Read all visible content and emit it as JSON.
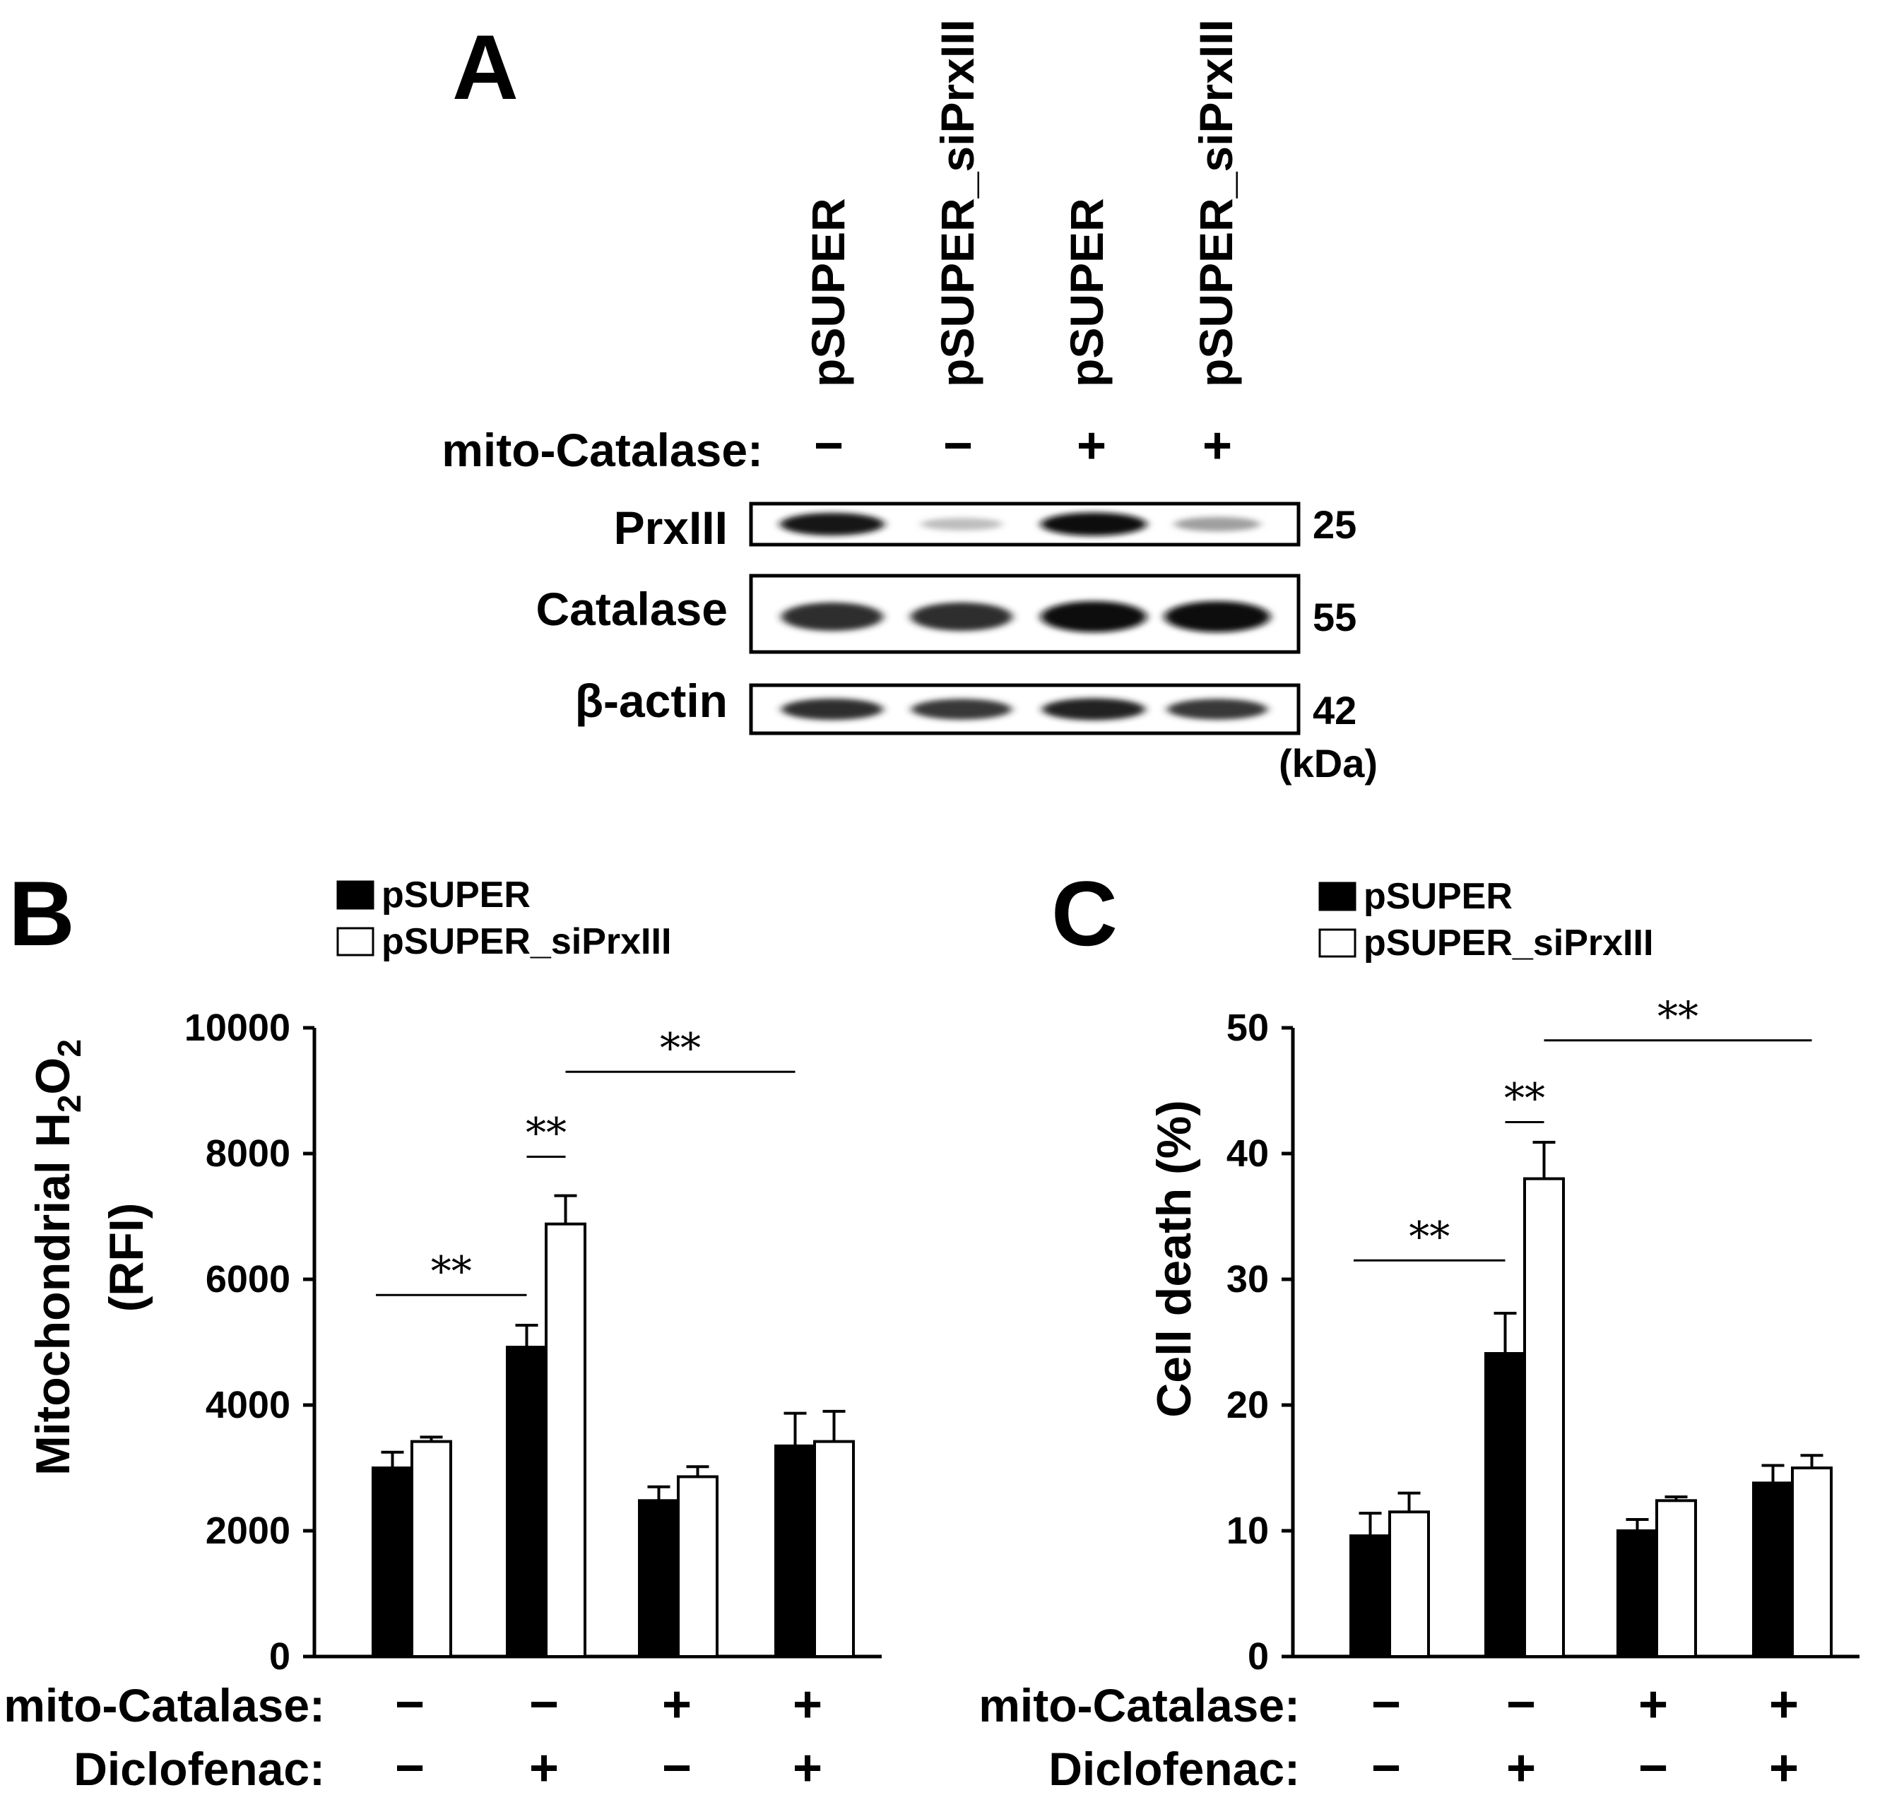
{
  "panel_a": {
    "letter": "A",
    "lanes": [
      "pSUPER",
      "pSUPER_siPrxIII",
      "pSUPER",
      "pSUPER_siPrxIII"
    ],
    "mito_label": "mito-Catalase:",
    "mito_signs": [
      "−",
      "−",
      "+",
      "+"
    ],
    "blots": [
      {
        "name": "PrxIII",
        "kda": "25",
        "intensity": [
          0.95,
          0.15,
          1.0,
          0.3
        ]
      },
      {
        "name": "Catalase",
        "kda": "55",
        "intensity": [
          0.85,
          0.85,
          1.0,
          1.0
        ]
      },
      {
        "name": "β-actin",
        "kda": "42",
        "intensity": [
          0.85,
          0.8,
          0.9,
          0.8
        ]
      }
    ],
    "unit": "(kDa)"
  },
  "legend": [
    "pSUPER",
    "pSUPER_siPrxIII"
  ],
  "conditions": {
    "row1_label": "mito-Catalase:",
    "row1": [
      "−",
      "−",
      "+",
      "+"
    ],
    "row2_label": "Diclofenac:",
    "row2": [
      "−",
      "+",
      "−",
      "+"
    ]
  },
  "chart_data": [
    {
      "letter": "B",
      "type": "bar",
      "ylabel_main": "Mitochondrial H",
      "ylabel_sub1": "2",
      "ylabel_mid": "O",
      "ylabel_sub2": "2",
      "ylabel2": "(RFI)",
      "ylim": [
        0,
        10000
      ],
      "yticks": [
        "0",
        "2000",
        "4000",
        "6000",
        "8000",
        "10000"
      ],
      "series": [
        {
          "name": "pSUPER",
          "color": "#000000",
          "values": [
            3000,
            4920,
            2480,
            3350
          ],
          "errors": [
            250,
            350,
            220,
            520
          ]
        },
        {
          "name": "pSUPER_siPrxIII",
          "color": "#ffffff",
          "values": [
            3420,
            6880,
            2860,
            3420
          ],
          "errors": [
            70,
            450,
            160,
            480
          ]
        }
      ],
      "sig": [
        {
          "from": [
            0,
            0
          ],
          "to": [
            1,
            0
          ],
          "y": 5750,
          "label": "**"
        },
        {
          "from": [
            1,
            0
          ],
          "to": [
            1,
            1
          ],
          "y": 7950,
          "label": "**"
        },
        {
          "from": [
            1,
            1
          ],
          "to": [
            3,
            0
          ],
          "y": 9300,
          "label": "**"
        }
      ]
    },
    {
      "letter": "C",
      "type": "bar",
      "ylabel_main": "Cell death (%)",
      "ylim": [
        0,
        50
      ],
      "yticks": [
        "0",
        "10",
        "20",
        "30",
        "40",
        "50"
      ],
      "series": [
        {
          "name": "pSUPER",
          "color": "#000000",
          "values": [
            9.6,
            24.1,
            10.0,
            13.8
          ],
          "errors": [
            1.8,
            3.2,
            0.9,
            1.4
          ]
        },
        {
          "name": "pSUPER_siPrxIII",
          "color": "#ffffff",
          "values": [
            11.5,
            38.0,
            12.4,
            15.0
          ],
          "errors": [
            1.5,
            2.9,
            0.3,
            1.0
          ]
        }
      ],
      "sig": [
        {
          "from": [
            0,
            0
          ],
          "to": [
            1,
            0
          ],
          "y": 31.5,
          "label": "**"
        },
        {
          "from": [
            1,
            0
          ],
          "to": [
            1,
            1
          ],
          "y": 42.5,
          "label": "**"
        },
        {
          "from": [
            1,
            1
          ],
          "to": [
            3,
            1
          ],
          "y": 49.0,
          "label": "**"
        }
      ]
    }
  ]
}
